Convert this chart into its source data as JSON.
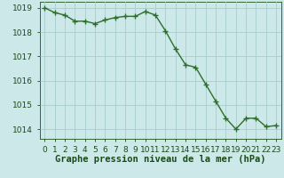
{
  "x": [
    0,
    1,
    2,
    3,
    4,
    5,
    6,
    7,
    8,
    9,
    10,
    11,
    12,
    13,
    14,
    15,
    16,
    17,
    18,
    19,
    20,
    21,
    22,
    23
  ],
  "y": [
    1019.0,
    1018.8,
    1018.7,
    1018.45,
    1018.45,
    1018.35,
    1018.5,
    1018.6,
    1018.65,
    1018.65,
    1018.85,
    1018.7,
    1018.05,
    1017.3,
    1016.65,
    1016.55,
    1015.85,
    1015.15,
    1014.45,
    1014.0,
    1014.45,
    1014.45,
    1014.1,
    1014.15
  ],
  "line_color": "#2d6e2d",
  "marker": "+",
  "bg_color": "#cce8e8",
  "grid_color": "#a8cccc",
  "xlabel": "Graphe pression niveau de la mer (hPa)",
  "xlabel_color": "#1a4a1a",
  "ylabel_ticks": [
    1014,
    1015,
    1016,
    1017,
    1018,
    1019
  ],
  "xtick_labels": [
    "0",
    "1",
    "2",
    "3",
    "4",
    "5",
    "6",
    "7",
    "8",
    "9",
    "10",
    "11",
    "12",
    "13",
    "14",
    "15",
    "16",
    "17",
    "18",
    "19",
    "20",
    "21",
    "22",
    "23"
  ],
  "ylim": [
    1013.6,
    1019.25
  ],
  "xlim": [
    -0.5,
    23.5
  ],
  "axis_color": "#336633",
  "tick_color": "#1a4a1a",
  "label_fontsize": 6.5,
  "xlabel_fontsize": 7.5,
  "linewidth": 1.0,
  "markersize": 4.0,
  "markeredgewidth": 1.0
}
